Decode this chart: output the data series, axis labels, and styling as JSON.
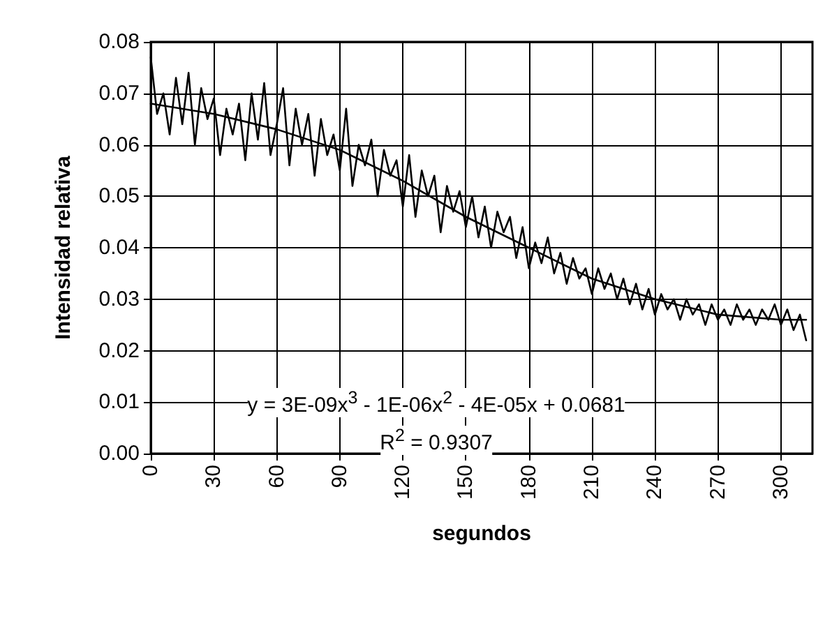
{
  "chart_data": {
    "type": "line",
    "xlabel": "segundos",
    "ylabel": "Intensidad relativa",
    "xlim": [
      0,
      315
    ],
    "xticks": [
      0,
      30,
      60,
      90,
      120,
      150,
      180,
      210,
      240,
      270,
      300
    ],
    "ylim": [
      0,
      0.08
    ],
    "yticks": [
      {
        "value": 0,
        "label": "0.00"
      },
      0.01,
      0.02,
      0.03,
      0.04,
      0.05,
      0.06,
      0.07,
      0.08
    ],
    "grid": true,
    "marker": "none",
    "line_style": "solid",
    "annotations": [
      "y = 3E-09x$^{3}$ - 1E-06x$^{2}$ - 4E-05x + 0.0681",
      "R$^{2}$ = 0.9307"
    ],
    "series": [
      {
        "color": "#000000",
        "x": [
          0,
          3,
          6,
          9,
          12,
          15,
          18,
          21,
          24,
          27,
          30,
          33,
          36,
          39,
          42,
          45,
          48,
          51,
          54,
          57,
          60,
          63,
          66,
          69,
          72,
          75,
          78,
          81,
          84,
          87,
          90,
          93,
          96,
          99,
          102,
          105,
          108,
          111,
          114,
          117,
          120,
          123,
          126,
          129,
          132,
          135,
          138,
          141,
          144,
          147,
          150,
          153,
          156,
          159,
          162,
          165,
          168,
          171,
          174,
          177,
          180,
          183,
          186,
          189,
          192,
          195,
          198,
          201,
          204,
          207,
          210,
          213,
          216,
          219,
          222,
          225,
          228,
          231,
          234,
          237,
          240,
          243,
          246,
          249,
          252,
          255,
          258,
          261,
          264,
          267,
          270,
          273,
          276,
          279,
          282,
          285,
          288,
          291,
          294,
          297,
          300,
          303,
          306,
          309,
          312
        ],
        "values": [
          0.077,
          0.066,
          0.07,
          0.062,
          0.073,
          0.064,
          0.074,
          0.06,
          0.071,
          0.065,
          0.069,
          0.058,
          0.067,
          0.062,
          0.068,
          0.057,
          0.07,
          0.061,
          0.072,
          0.058,
          0.064,
          0.071,
          0.056,
          0.067,
          0.06,
          0.066,
          0.054,
          0.065,
          0.058,
          0.062,
          0.055,
          0.067,
          0.052,
          0.06,
          0.056,
          0.061,
          0.05,
          0.059,
          0.054,
          0.057,
          0.048,
          0.058,
          0.046,
          0.055,
          0.05,
          0.054,
          0.043,
          0.052,
          0.047,
          0.051,
          0.044,
          0.05,
          0.042,
          0.048,
          0.04,
          0.047,
          0.043,
          0.046,
          0.038,
          0.044,
          0.036,
          0.041,
          0.037,
          0.042,
          0.035,
          0.039,
          0.033,
          0.038,
          0.034,
          0.036,
          0.031,
          0.036,
          0.032,
          0.035,
          0.03,
          0.034,
          0.029,
          0.033,
          0.028,
          0.032,
          0.027,
          0.031,
          0.028,
          0.03,
          0.026,
          0.03,
          0.027,
          0.029,
          0.025,
          0.029,
          0.026,
          0.028,
          0.025,
          0.029,
          0.026,
          0.028,
          0.025,
          0.028,
          0.026,
          0.029,
          0.025,
          0.028,
          0.024,
          0.027,
          0.022
        ]
      },
      {
        "color": "#000000",
        "x": [
          0,
          30,
          60,
          90,
          120,
          150,
          180,
          210,
          240,
          270,
          300,
          312
        ],
        "values": [
          0.068,
          0.066,
          0.063,
          0.059,
          0.053,
          0.046,
          0.04,
          0.034,
          0.03,
          0.027,
          0.026,
          0.026
        ]
      }
    ]
  }
}
